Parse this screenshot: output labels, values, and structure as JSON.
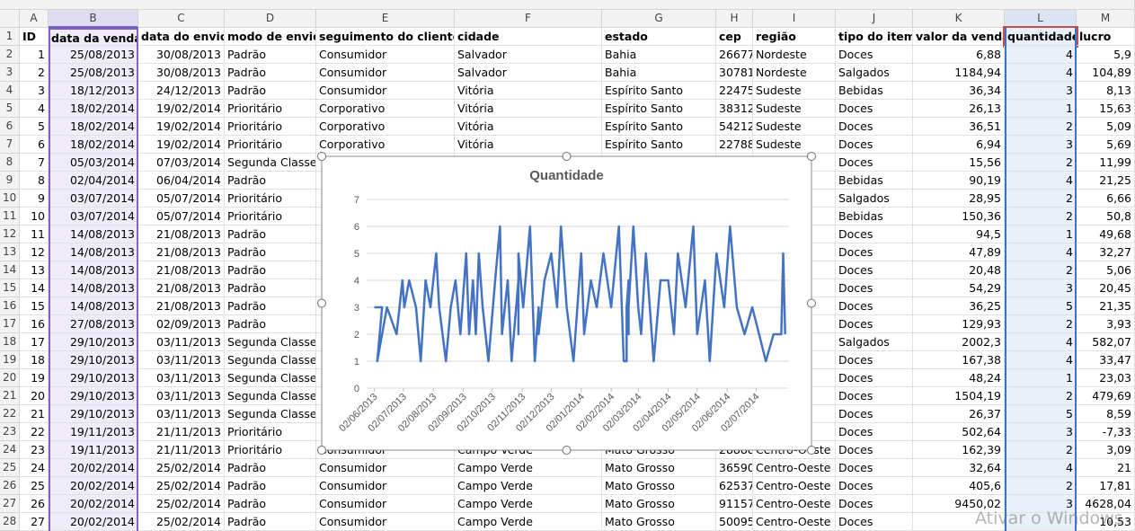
{
  "sheet": {
    "columns": [
      "A",
      "B",
      "C",
      "D",
      "E",
      "F",
      "G",
      "H",
      "I",
      "J",
      "K",
      "L",
      "M"
    ],
    "rows": [
      {
        "row": "1",
        "cells": {
          "A": "ID",
          "B": "data da venda",
          "C": "data do envio",
          "D": "modo de envio",
          "E": "seguimento do cliente",
          "F": "cidade",
          "G": "estado",
          "H": "cep",
          "I": "região",
          "J": "tipo do item",
          "K": "valor da venda",
          "L": "quantidade",
          "M": "lucro"
        }
      },
      {
        "row": "2",
        "cells": {
          "A": "1",
          "B": "25/08/2013",
          "C": "30/08/2013",
          "D": "Padrão",
          "E": "Consumidor",
          "F": "Salvador",
          "G": "Bahia",
          "H": "26677",
          "I": "Nordeste",
          "J": "Doces",
          "K": "6,88",
          "L": "4",
          "M": "5,9"
        }
      },
      {
        "row": "3",
        "cells": {
          "A": "2",
          "B": "25/08/2013",
          "C": "30/08/2013",
          "D": "Padrão",
          "E": "Consumidor",
          "F": "Salvador",
          "G": "Bahia",
          "H": "30781",
          "I": "Nordeste",
          "J": "Salgados",
          "K": "1184,94",
          "L": "4",
          "M": "104,89"
        }
      },
      {
        "row": "4",
        "cells": {
          "A": "3",
          "B": "18/12/2013",
          "C": "24/12/2013",
          "D": "Padrão",
          "E": "Consumidor",
          "F": "Vitória",
          "G": "Espírito Santo",
          "H": "22475",
          "I": "Sudeste",
          "J": "Bebidas",
          "K": "36,34",
          "L": "3",
          "M": "8,13"
        }
      },
      {
        "row": "5",
        "cells": {
          "A": "4",
          "B": "18/02/2014",
          "C": "19/02/2014",
          "D": "Prioritário",
          "E": "Corporativo",
          "F": "Vitória",
          "G": "Espírito Santo",
          "H": "38312",
          "I": "Sudeste",
          "J": "Doces",
          "K": "26,13",
          "L": "1",
          "M": "15,63"
        }
      },
      {
        "row": "6",
        "cells": {
          "A": "5",
          "B": "18/02/2014",
          "C": "19/02/2014",
          "D": "Prioritário",
          "E": "Corporativo",
          "F": "Vitória",
          "G": "Espírito Santo",
          "H": "54212",
          "I": "Sudeste",
          "J": "Doces",
          "K": "36,51",
          "L": "2",
          "M": "5,09"
        }
      },
      {
        "row": "7",
        "cells": {
          "A": "6",
          "B": "18/02/2014",
          "C": "19/02/2014",
          "D": "Prioritário",
          "E": "Corporativo",
          "F": "Vitória",
          "G": "Espírito Santo",
          "H": "22788",
          "I": "Sudeste",
          "J": "Doces",
          "K": "6,94",
          "L": "3",
          "M": "5,69"
        }
      },
      {
        "row": "8",
        "cells": {
          "A": "7",
          "B": "05/03/2014",
          "C": "07/03/2014",
          "D": "Segunda Classe",
          "J": "Doces",
          "K": "15,56",
          "L": "2",
          "M": "11,99"
        }
      },
      {
        "row": "9",
        "cells": {
          "A": "8",
          "B": "02/04/2014",
          "C": "06/04/2014",
          "D": "Padrão",
          "J": "Bebidas",
          "K": "90,19",
          "L": "4",
          "M": "21,25"
        }
      },
      {
        "row": "10",
        "cells": {
          "A": "9",
          "B": "03/07/2014",
          "C": "05/07/2014",
          "D": "Prioritário",
          "J": "Salgados",
          "K": "28,95",
          "L": "2",
          "M": "6,66"
        }
      },
      {
        "row": "11",
        "cells": {
          "A": "10",
          "B": "03/07/2014",
          "C": "05/07/2014",
          "D": "Prioritário",
          "J": "Bebidas",
          "K": "150,36",
          "L": "2",
          "M": "50,8"
        }
      },
      {
        "row": "12",
        "cells": {
          "A": "11",
          "B": "14/08/2013",
          "C": "21/08/2013",
          "D": "Padrão",
          "J": "Doces",
          "K": "94,5",
          "L": "1",
          "M": "49,68"
        }
      },
      {
        "row": "13",
        "cells": {
          "A": "12",
          "B": "14/08/2013",
          "C": "21/08/2013",
          "D": "Padrão",
          "J": "Doces",
          "K": "47,89",
          "L": "4",
          "M": "32,27"
        }
      },
      {
        "row": "14",
        "cells": {
          "A": "13",
          "B": "14/08/2013",
          "C": "21/08/2013",
          "D": "Padrão",
          "J": "Doces",
          "K": "20,48",
          "L": "2",
          "M": "5,06"
        }
      },
      {
        "row": "15",
        "cells": {
          "A": "14",
          "B": "14/08/2013",
          "C": "21/08/2013",
          "D": "Padrão",
          "J": "Doces",
          "K": "54,29",
          "L": "3",
          "M": "20,45"
        }
      },
      {
        "row": "16",
        "cells": {
          "A": "15",
          "B": "14/08/2013",
          "C": "21/08/2013",
          "D": "Padrão",
          "J": "Doces",
          "K": "36,25",
          "L": "5",
          "M": "21,35"
        }
      },
      {
        "row": "17",
        "cells": {
          "A": "16",
          "B": "27/08/2013",
          "C": "02/09/2013",
          "D": "Padrão",
          "J": "Doces",
          "K": "129,93",
          "L": "2",
          "M": "3,93"
        }
      },
      {
        "row": "18",
        "cells": {
          "A": "17",
          "B": "29/10/2013",
          "C": "03/11/2013",
          "D": "Segunda Classe",
          "J": "Salgados",
          "K": "2002,3",
          "L": "4",
          "M": "582,07"
        }
      },
      {
        "row": "19",
        "cells": {
          "A": "18",
          "B": "29/10/2013",
          "C": "03/11/2013",
          "D": "Segunda Classe",
          "J": "Doces",
          "K": "167,38",
          "L": "4",
          "M": "33,47"
        }
      },
      {
        "row": "20",
        "cells": {
          "A": "19",
          "B": "29/10/2013",
          "C": "03/11/2013",
          "D": "Segunda Classe",
          "J": "Doces",
          "K": "48,24",
          "L": "1",
          "M": "23,03"
        }
      },
      {
        "row": "21",
        "cells": {
          "A": "20",
          "B": "29/10/2013",
          "C": "03/11/2013",
          "D": "Segunda Classe",
          "J": "Doces",
          "K": "1504,19",
          "L": "2",
          "M": "479,69"
        }
      },
      {
        "row": "22",
        "cells": {
          "A": "21",
          "B": "29/10/2013",
          "C": "03/11/2013",
          "D": "Segunda Classe",
          "J": "Doces",
          "K": "26,37",
          "L": "5",
          "M": "8,59"
        }
      },
      {
        "row": "23",
        "cells": {
          "A": "22",
          "B": "19/11/2013",
          "C": "21/11/2013",
          "D": "Prioritário",
          "J": "Doces",
          "K": "502,64",
          "L": "3",
          "M": "-7,33"
        }
      },
      {
        "row": "24",
        "cells": {
          "A": "23",
          "B": "19/11/2013",
          "C": "21/11/2013",
          "D": "Prioritário",
          "E": "Consumidor",
          "F": "Campo Verde",
          "G": "Mato Grosso",
          "H": "28888",
          "I": "Centro-Oeste",
          "J": "Doces",
          "K": "162,39",
          "L": "2",
          "M": "3,09"
        }
      },
      {
        "row": "25",
        "cells": {
          "A": "24",
          "B": "20/02/2014",
          "C": "25/02/2014",
          "D": "Padrão",
          "E": "Consumidor",
          "F": "Campo Verde",
          "G": "Mato Grosso",
          "H": "36590",
          "I": "Centro-Oeste",
          "J": "Doces",
          "K": "32,64",
          "L": "4",
          "M": "21"
        }
      },
      {
        "row": "26",
        "cells": {
          "A": "25",
          "B": "20/02/2014",
          "C": "25/02/2014",
          "D": "Padrão",
          "E": "Consumidor",
          "F": "Campo Verde",
          "G": "Mato Grosso",
          "H": "62537",
          "I": "Centro-Oeste",
          "J": "Doces",
          "K": "405,6",
          "L": "2",
          "M": "17,81"
        }
      },
      {
        "row": "27",
        "cells": {
          "A": "26",
          "B": "20/02/2014",
          "C": "25/02/2014",
          "D": "Padrão",
          "E": "Consumidor",
          "F": "Campo Verde",
          "G": "Mato Grosso",
          "H": "91157",
          "I": "Centro-Oeste",
          "J": "Doces",
          "K": "9450,02",
          "L": "3",
          "M": "4628,04"
        }
      },
      {
        "row": "28",
        "cells": {
          "A": "27",
          "B": "20/02/2014",
          "C": "25/02/2014",
          "D": "Padrão",
          "E": "Consumidor",
          "F": "Campo Verde",
          "G": "Mato Grosso",
          "H": "50095",
          "I": "Centro-Oeste",
          "J": "Doces",
          "M": "10,53"
        }
      }
    ],
    "watermark": "Ativar o Windows"
  },
  "chart_data": {
    "type": "line",
    "title": "Quantidade",
    "color": "#4472c4",
    "grid": true,
    "x": [
      "02/06/2013",
      "10/06/2013",
      "05/06/2013",
      "15/06/2013",
      "25/06/2013",
      "01/07/2013",
      "03/07/2013",
      "08/07/2013",
      "15/07/2013",
      "20/07/2013",
      "25/07/2013",
      "30/07/2013",
      "05/08/2013",
      "08/08/2013",
      "15/08/2013",
      "20/08/2013",
      "25/08/2013",
      "25/08/2013",
      "30/08/2013",
      "05/09/2013",
      "08/09/2013",
      "12/09/2013",
      "15/09/2013",
      "18/09/2013",
      "22/09/2013",
      "28/09/2013",
      "05/10/2013",
      "10/10/2013",
      "12/10/2013",
      "18/10/2013",
      "22/10/2013",
      "29/10/2013",
      "29/10/2013",
      "29/10/2013",
      "03/11/2013",
      "10/11/2013",
      "15/11/2013",
      "19/11/2013",
      "19/11/2013",
      "25/11/2013",
      "02/12/2013",
      "08/12/2013",
      "12/12/2013",
      "18/12/2013",
      "25/12/2013",
      "02/01/2014",
      "05/01/2014",
      "12/01/2014",
      "18/01/2014",
      "25/01/2014",
      "02/02/2014",
      "10/02/2014",
      "15/02/2014",
      "18/02/2014",
      "18/02/2014",
      "18/02/2014",
      "20/02/2014",
      "20/02/2014",
      "20/02/2014",
      "25/02/2014",
      "02/03/2014",
      "05/03/2014",
      "10/03/2014",
      "18/03/2014",
      "25/03/2014",
      "02/04/2014",
      "08/04/2014",
      "12/04/2014",
      "20/04/2014",
      "28/04/2014",
      "02/05/2014",
      "10/05/2014",
      "15/05/2014",
      "22/05/2014",
      "30/05/2014",
      "05/06/2014",
      "12/06/2014",
      "20/06/2014",
      "28/06/2014",
      "05/07/2014",
      "12/07/2014",
      "20/07/2014",
      "28/07/2014",
      "30/07/2014",
      "01/08/2014"
    ],
    "values": [
      3,
      3,
      1,
      3,
      2,
      4,
      3,
      4,
      3,
      1,
      4,
      3,
      5,
      3,
      1,
      3,
      4,
      4,
      2,
      5,
      2,
      4,
      2,
      5,
      3,
      1,
      4,
      6,
      2,
      4,
      1,
      4,
      2,
      5,
      3,
      6,
      1,
      3,
      2,
      4,
      5,
      3,
      6,
      3,
      1,
      5,
      2,
      4,
      3,
      5,
      3,
      6,
      1,
      1,
      2,
      3,
      4,
      2,
      3,
      6,
      3,
      2,
      5,
      1,
      4,
      4,
      2,
      5,
      3,
      6,
      2,
      4,
      1,
      5,
      3,
      6,
      3,
      2,
      3,
      2,
      1,
      2,
      2,
      5,
      2
    ],
    "xlim": [
      "25/05/2013",
      "05/08/2014"
    ],
    "xticks": [
      "02/06/2013",
      "02/07/2013",
      "02/08/2013",
      "02/09/2013",
      "02/10/2013",
      "02/11/2013",
      "02/12/2013",
      "02/01/2014",
      "02/02/2014",
      "02/03/2014",
      "02/04/2014",
      "02/05/2014",
      "02/06/2014",
      "02/07/2014"
    ],
    "ylim": [
      0,
      7
    ],
    "yticks": [
      0,
      1,
      2,
      3,
      4,
      5,
      6,
      7
    ]
  }
}
